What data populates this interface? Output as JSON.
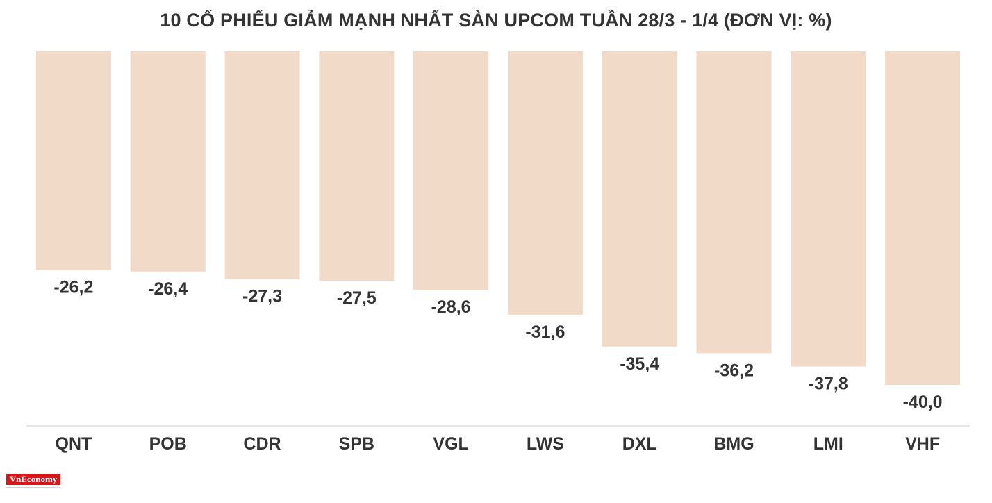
{
  "logo": {
    "text": "VnEconomy"
  },
  "chart_data": {
    "type": "bar",
    "title": "10 CỔ PHIẾU GIẢM MẠNH NHẤT SÀN UPCOM TUẦN 28/3 - 1/4 (ĐƠN VỊ: %)",
    "xlabel": "",
    "ylabel": "",
    "categories": [
      "QNT",
      "POB",
      "CDR",
      "SPB",
      "VGL",
      "LWS",
      "DXL",
      "BMG",
      "LMI",
      "VHF"
    ],
    "values": [
      -26.2,
      -26.4,
      -27.3,
      -27.5,
      -28.6,
      -31.6,
      -35.4,
      -36.2,
      -37.8,
      -40.0
    ],
    "value_labels": [
      "-26,2",
      "-26,4",
      "-27,3",
      "-27,5",
      "-28,6",
      "-31,6",
      "-35,4",
      "-36,2",
      "-37,8",
      "-40,0"
    ],
    "bar_color": "#f2dac8",
    "label_color": "#333333",
    "axis_color": "#dddddd",
    "grid": false,
    "legend": "none",
    "value_axis": "hidden"
  }
}
